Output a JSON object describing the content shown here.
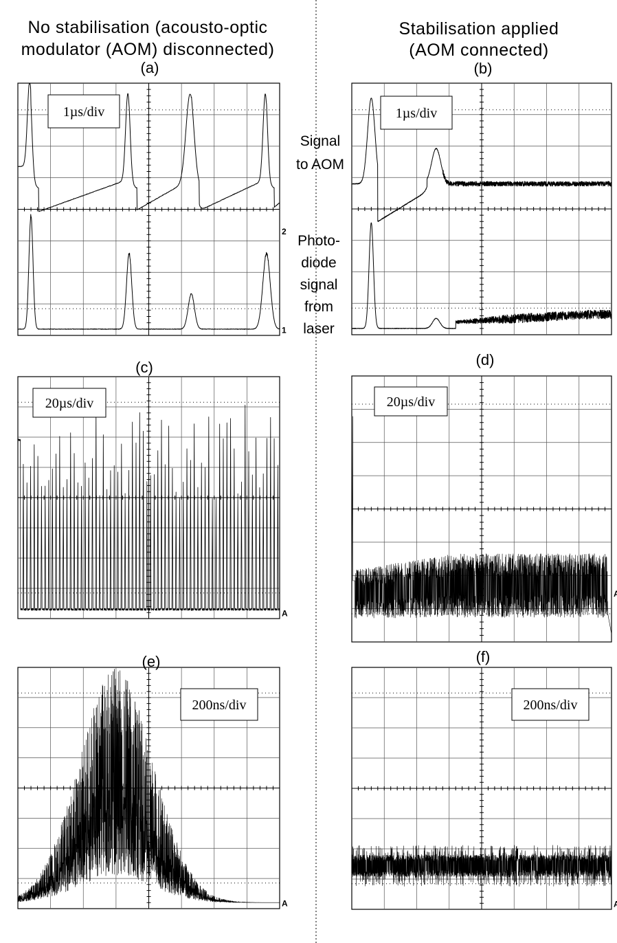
{
  "header": {
    "left_line1": "No stabilisation (acousto-optic",
    "left_line2": "modulator (AOM) disconnected)",
    "right_line1": "Stabilisation applied",
    "right_line2": "(AOM connected)"
  },
  "side_labels": {
    "signal_line1": "Signal",
    "signal_line2": "to AOM",
    "photo_line1": "Photo-",
    "photo_line2": "diode",
    "photo_line3": "signal",
    "photo_line4": "from",
    "photo_line5": "laser"
  },
  "chart_data": [
    {
      "id": "a",
      "label": "(a)",
      "type": "line",
      "timebase": "1µs/div",
      "channel_marks": [
        "2",
        "1"
      ],
      "series": [
        {
          "trace": "signal to AOM",
          "peaks_div": [
            0.4,
            3.4,
            5.3,
            7.6
          ]
        },
        {
          "trace": "photodiode",
          "peaks_div": [
            0.4,
            3.4,
            5.3,
            7.6
          ]
        }
      ]
    },
    {
      "id": "b",
      "label": "(b)",
      "type": "line",
      "timebase": "1µs/div",
      "series": [
        {
          "trace": "signal to AOM",
          "peaks_div": [
            0.6,
            2.6
          ],
          "settled_after_div": 3.2
        },
        {
          "trace": "photodiode",
          "peaks_div": [
            0.6,
            2.6
          ],
          "settled_after_div": 3.2
        }
      ]
    },
    {
      "id": "c",
      "label": "(c)",
      "type": "line",
      "timebase": "20µs/div",
      "channel_marks": [
        "A"
      ],
      "series": [
        {
          "trace": "photodiode",
          "pulse_count": 72
        }
      ]
    },
    {
      "id": "d",
      "label": "(d)",
      "type": "line",
      "timebase": "20µs/div",
      "channel_marks": [
        "A"
      ],
      "series": [
        {
          "trace": "photodiode",
          "initial_spike_div": 0.05
        }
      ]
    },
    {
      "id": "e",
      "label": "(e)",
      "type": "line",
      "timebase": "200ns/div",
      "channel_marks": [
        "A"
      ],
      "series": [
        {
          "trace": "photodiode",
          "envelope_peak_div": 3.0
        }
      ]
    },
    {
      "id": "f",
      "label": "(f)",
      "type": "line",
      "timebase": "200ns/div",
      "channel_marks": [
        "A"
      ],
      "series": [
        {
          "trace": "photodiode"
        }
      ]
    }
  ]
}
